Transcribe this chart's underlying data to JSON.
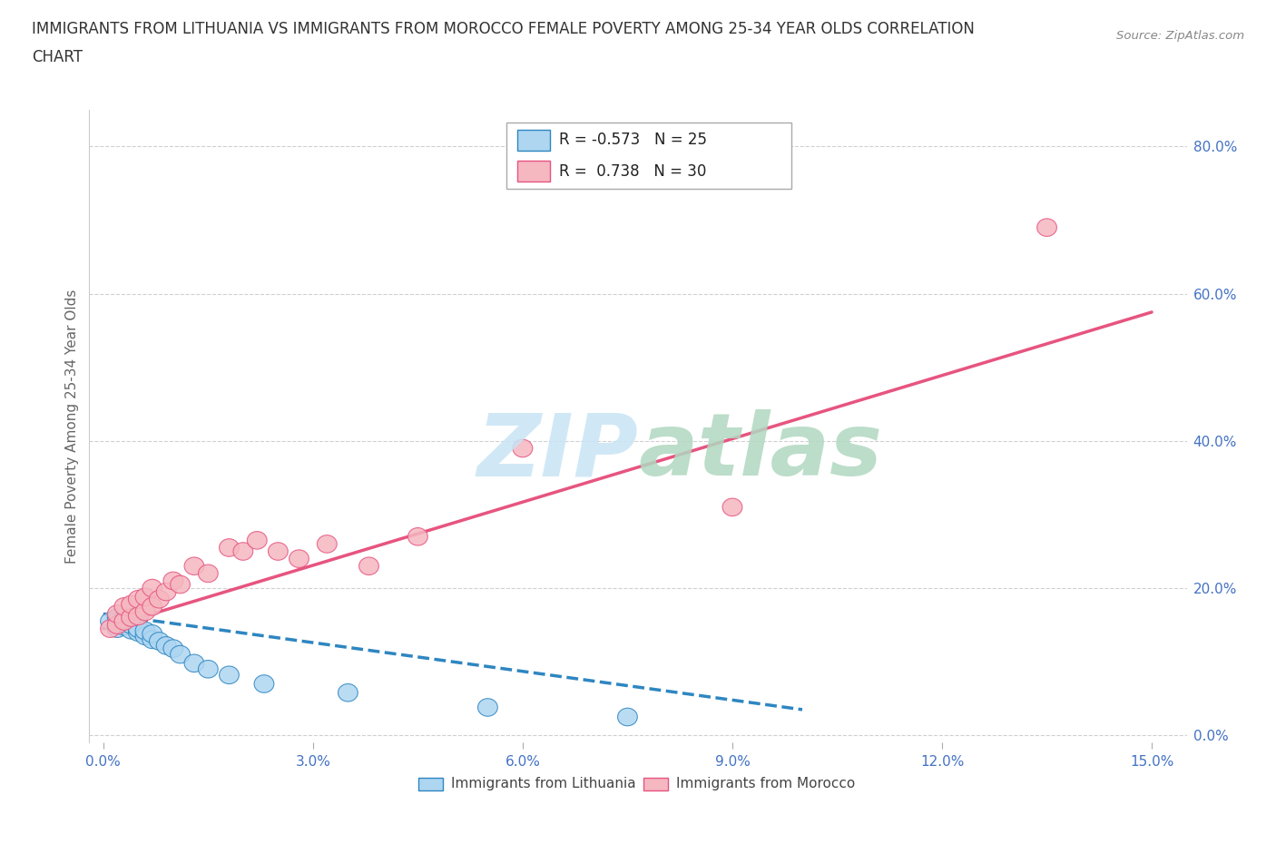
{
  "title_line1": "IMMIGRANTS FROM LITHUANIA VS IMMIGRANTS FROM MOROCCO FEMALE POVERTY AMONG 25-34 YEAR OLDS CORRELATION",
  "title_line2": "CHART",
  "source": "Source: ZipAtlas.com",
  "ylabel": "Female Poverty Among 25-34 Year Olds",
  "xlim": [
    -0.002,
    0.155
  ],
  "ylim": [
    -0.01,
    0.85
  ],
  "xticks": [
    0.0,
    0.03,
    0.06,
    0.09,
    0.12,
    0.15
  ],
  "xtick_labels": [
    "0.0%",
    "3.0%",
    "6.0%",
    "9.0%",
    "12.0%",
    "15.0%"
  ],
  "yticks_right": [
    0.0,
    0.2,
    0.4,
    0.6,
    0.8
  ],
  "ytick_labels_right": [
    "0.0%",
    "20.0%",
    "40.0%",
    "60.0%",
    "80.0%"
  ],
  "color_lithuania": "#AED6F1",
  "color_morocco": "#F5B7C0",
  "color_lithuania_line": "#2E86C1",
  "color_morocco_line": "#E75480",
  "background_color": "#ffffff",
  "grid_color": "#d0d0d0",
  "lithuania_x": [
    0.001,
    0.002,
    0.002,
    0.003,
    0.003,
    0.003,
    0.004,
    0.004,
    0.005,
    0.005,
    0.006,
    0.006,
    0.007,
    0.007,
    0.008,
    0.009,
    0.01,
    0.011,
    0.013,
    0.015,
    0.018,
    0.023,
    0.035,
    0.055,
    0.075
  ],
  "lithuania_y": [
    0.155,
    0.16,
    0.145,
    0.148,
    0.152,
    0.158,
    0.143,
    0.15,
    0.14,
    0.145,
    0.135,
    0.142,
    0.13,
    0.138,
    0.128,
    0.122,
    0.118,
    0.11,
    0.098,
    0.09,
    0.082,
    0.07,
    0.058,
    0.038,
    0.025
  ],
  "morocco_x": [
    0.001,
    0.002,
    0.002,
    0.003,
    0.003,
    0.004,
    0.004,
    0.005,
    0.005,
    0.006,
    0.006,
    0.007,
    0.007,
    0.008,
    0.009,
    0.01,
    0.011,
    0.013,
    0.015,
    0.018,
    0.02,
    0.022,
    0.025,
    0.028,
    0.032,
    0.038,
    0.045,
    0.06,
    0.09,
    0.135
  ],
  "morocco_y": [
    0.145,
    0.15,
    0.165,
    0.155,
    0.175,
    0.16,
    0.178,
    0.162,
    0.185,
    0.168,
    0.188,
    0.175,
    0.2,
    0.185,
    0.195,
    0.21,
    0.205,
    0.23,
    0.22,
    0.255,
    0.25,
    0.265,
    0.25,
    0.24,
    0.26,
    0.23,
    0.27,
    0.39,
    0.31,
    0.69
  ],
  "mor_line_x0": 0.0,
  "mor_line_y0": 0.145,
  "mor_line_x1": 0.15,
  "mor_line_y1": 0.575,
  "lith_line_x0": 0.0,
  "lith_line_y0": 0.165,
  "lith_line_x1": 0.1,
  "lith_line_y1": 0.035
}
